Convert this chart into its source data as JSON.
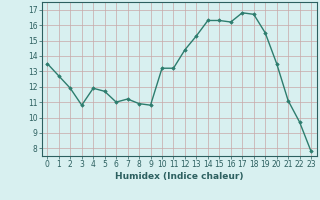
{
  "x": [
    0,
    1,
    2,
    3,
    4,
    5,
    6,
    7,
    8,
    9,
    10,
    11,
    12,
    13,
    14,
    15,
    16,
    17,
    18,
    19,
    20,
    21,
    22,
    23
  ],
  "y": [
    13.5,
    12.7,
    11.9,
    10.8,
    11.9,
    11.7,
    11.0,
    11.2,
    10.9,
    10.8,
    13.2,
    13.2,
    14.4,
    15.3,
    16.3,
    16.3,
    16.2,
    16.8,
    16.7,
    15.5,
    13.5,
    11.1,
    9.7,
    7.8
  ],
  "line_color": "#2d7d6e",
  "marker": "D",
  "marker_size": 1.8,
  "bg_color": "#d8f0f0",
  "grid_color": "#c8a8a8",
  "xlabel": "Humidex (Indice chaleur)",
  "xlim": [
    -0.5,
    23.5
  ],
  "ylim": [
    7.5,
    17.5
  ],
  "yticks": [
    8,
    9,
    10,
    11,
    12,
    13,
    14,
    15,
    16,
    17
  ],
  "xticks": [
    0,
    1,
    2,
    3,
    4,
    5,
    6,
    7,
    8,
    9,
    10,
    11,
    12,
    13,
    14,
    15,
    16,
    17,
    18,
    19,
    20,
    21,
    22,
    23
  ],
  "xlabel_fontsize": 6.5,
  "tick_fontsize": 5.5,
  "axis_color": "#2d6060",
  "linewidth": 1.0
}
